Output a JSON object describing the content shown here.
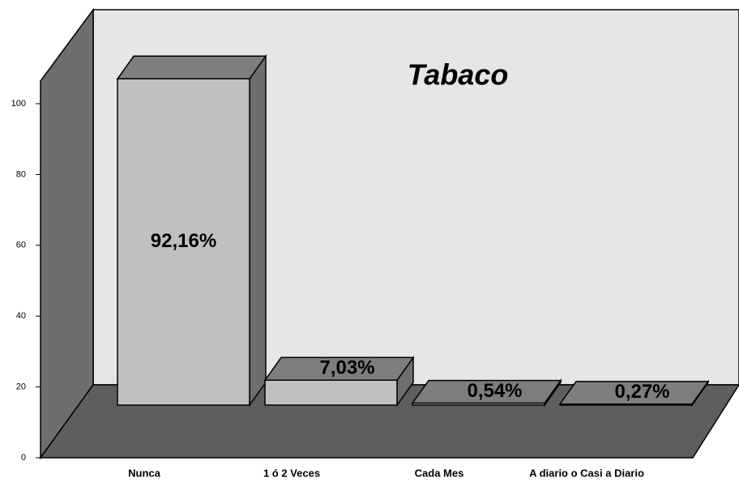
{
  "chart_data": {
    "type": "bar3d",
    "title": "Tabaco",
    "categories": [
      "Nunca",
      "1 ó 2 Veces",
      "Cada Mes",
      "A diario o Casi a Diario"
    ],
    "values": [
      92.16,
      7.03,
      0.54,
      0.27
    ],
    "value_labels": [
      "92,16%",
      "7,03%",
      "0,54%",
      "0,27%"
    ],
    "ylim": [
      0,
      100
    ],
    "yticks": [
      0,
      20,
      40,
      60,
      80,
      100
    ],
    "grid": false,
    "colors": {
      "front": "#c0c0c0",
      "side": "#6e6e6e",
      "top": "#7e7e7e",
      "wall": "#e6e6e6",
      "floor": "#5e5e5e",
      "leftwall": "#6e6e6e"
    }
  }
}
